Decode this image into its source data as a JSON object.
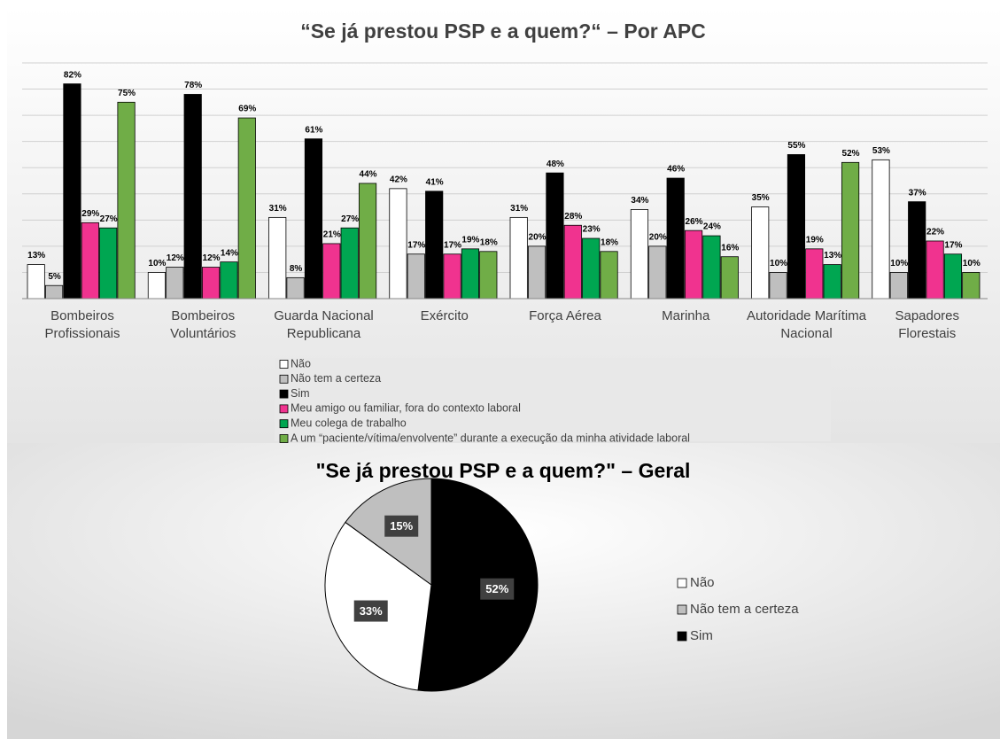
{
  "chart_data": [
    {
      "type": "bar",
      "title": "“Se já prestou PSP e a quem?“ – Por APC",
      "categories": [
        "Bombeiros Profissionais",
        "Bombeiros Voluntários",
        "Guarda Nacional Republicana",
        "Exército",
        "Força Aérea",
        "Marinha",
        "Autoridade Marítima Nacional",
        "Sapadores Florestais"
      ],
      "series": [
        {
          "name": "Não",
          "color": "#ffffff",
          "values": [
            13,
            10,
            31,
            42,
            31,
            34,
            35,
            53
          ],
          "value_labels": [
            "13%",
            "10%",
            "31%",
            "42%",
            "31%",
            "34%",
            "35%",
            "53%"
          ]
        },
        {
          "name": "Não tem a certeza",
          "color": "#bfbfbf",
          "values": [
            5,
            12,
            8,
            17,
            20,
            20,
            10,
            10
          ],
          "value_labels": [
            "5%",
            "12%",
            "8%",
            "17%",
            "20%",
            "20%",
            "10%",
            "10%"
          ]
        },
        {
          "name": "Sim",
          "color": "#000000",
          "values": [
            82,
            78,
            61,
            41,
            48,
            46,
            55,
            37
          ],
          "value_labels": [
            "82%",
            "78%",
            "61%",
            "41%",
            "48%",
            "46%",
            "55%",
            "37%"
          ]
        },
        {
          "name": "Meu amigo ou familiar, fora do contexto laboral",
          "color": "#f0338f",
          "values": [
            29,
            12,
            21,
            17,
            28,
            26,
            19,
            22
          ],
          "value_labels": [
            "29%",
            "12%",
            "21%",
            "17%",
            "28%",
            "26%",
            "19%",
            "22%"
          ]
        },
        {
          "name": "Meu colega de trabalho",
          "color": "#00a651",
          "values": [
            27,
            14,
            27,
            19,
            23,
            24,
            13,
            17
          ],
          "value_labels": [
            "27%",
            "14%",
            "27%",
            "19%",
            "23%",
            "24%",
            "13%",
            "17%"
          ]
        },
        {
          "name": "A um “paciente/vítima/envolvente” durante a execução da minha atividade laboral",
          "color": "#70ad47",
          "values": [
            75,
            69,
            44,
            18,
            18,
            16,
            52,
            10
          ],
          "value_labels": [
            "75%",
            "69%",
            "44%",
            "18%",
            "18%",
            "16%",
            "52%",
            "10%"
          ]
        }
      ],
      "ylim": [
        0,
        90
      ],
      "yticks": [
        0,
        10,
        20,
        30,
        40,
        50,
        60,
        70,
        80,
        90
      ],
      "grid": true
    },
    {
      "type": "pie",
      "title": "\"Se já prestou PSP e a quem?\" – Geral",
      "categories": [
        "Não",
        "Não tem a certeza",
        "Sim"
      ],
      "values": [
        33,
        15,
        52
      ],
      "value_labels": [
        "33%",
        "15%",
        "52%"
      ],
      "colors": [
        "#ffffff",
        "#bfbfbf",
        "#000000"
      ],
      "legend": "right"
    }
  ]
}
